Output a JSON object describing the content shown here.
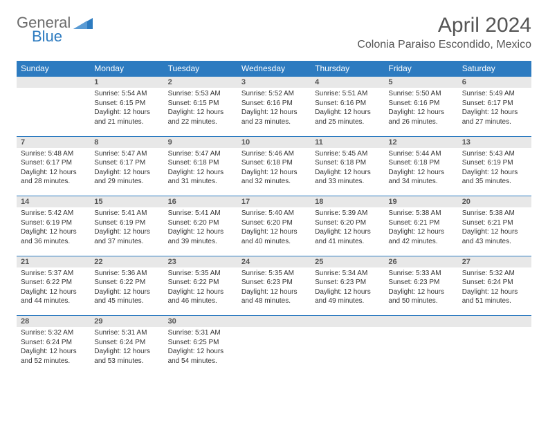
{
  "logo": {
    "general": "General",
    "blue": "Blue",
    "icon_color": "#2d7bc0"
  },
  "title": "April 2024",
  "location": "Colonia Paraiso Escondido, Mexico",
  "colors": {
    "header_bg": "#2d7bc0",
    "header_text": "#ffffff",
    "daynum_bg": "#e8e8e8",
    "text": "#333333",
    "row_border": "#2d7bc0"
  },
  "weekdays": [
    "Sunday",
    "Monday",
    "Tuesday",
    "Wednesday",
    "Thursday",
    "Friday",
    "Saturday"
  ],
  "weeks": [
    [
      null,
      {
        "n": "1",
        "sr": "5:54 AM",
        "ss": "6:15 PM",
        "dl": "12 hours and 21 minutes."
      },
      {
        "n": "2",
        "sr": "5:53 AM",
        "ss": "6:15 PM",
        "dl": "12 hours and 22 minutes."
      },
      {
        "n": "3",
        "sr": "5:52 AM",
        "ss": "6:16 PM",
        "dl": "12 hours and 23 minutes."
      },
      {
        "n": "4",
        "sr": "5:51 AM",
        "ss": "6:16 PM",
        "dl": "12 hours and 25 minutes."
      },
      {
        "n": "5",
        "sr": "5:50 AM",
        "ss": "6:16 PM",
        "dl": "12 hours and 26 minutes."
      },
      {
        "n": "6",
        "sr": "5:49 AM",
        "ss": "6:17 PM",
        "dl": "12 hours and 27 minutes."
      }
    ],
    [
      {
        "n": "7",
        "sr": "5:48 AM",
        "ss": "6:17 PM",
        "dl": "12 hours and 28 minutes."
      },
      {
        "n": "8",
        "sr": "5:47 AM",
        "ss": "6:17 PM",
        "dl": "12 hours and 29 minutes."
      },
      {
        "n": "9",
        "sr": "5:47 AM",
        "ss": "6:18 PM",
        "dl": "12 hours and 31 minutes."
      },
      {
        "n": "10",
        "sr": "5:46 AM",
        "ss": "6:18 PM",
        "dl": "12 hours and 32 minutes."
      },
      {
        "n": "11",
        "sr": "5:45 AM",
        "ss": "6:18 PM",
        "dl": "12 hours and 33 minutes."
      },
      {
        "n": "12",
        "sr": "5:44 AM",
        "ss": "6:18 PM",
        "dl": "12 hours and 34 minutes."
      },
      {
        "n": "13",
        "sr": "5:43 AM",
        "ss": "6:19 PM",
        "dl": "12 hours and 35 minutes."
      }
    ],
    [
      {
        "n": "14",
        "sr": "5:42 AM",
        "ss": "6:19 PM",
        "dl": "12 hours and 36 minutes."
      },
      {
        "n": "15",
        "sr": "5:41 AM",
        "ss": "6:19 PM",
        "dl": "12 hours and 37 minutes."
      },
      {
        "n": "16",
        "sr": "5:41 AM",
        "ss": "6:20 PM",
        "dl": "12 hours and 39 minutes."
      },
      {
        "n": "17",
        "sr": "5:40 AM",
        "ss": "6:20 PM",
        "dl": "12 hours and 40 minutes."
      },
      {
        "n": "18",
        "sr": "5:39 AM",
        "ss": "6:20 PM",
        "dl": "12 hours and 41 minutes."
      },
      {
        "n": "19",
        "sr": "5:38 AM",
        "ss": "6:21 PM",
        "dl": "12 hours and 42 minutes."
      },
      {
        "n": "20",
        "sr": "5:38 AM",
        "ss": "6:21 PM",
        "dl": "12 hours and 43 minutes."
      }
    ],
    [
      {
        "n": "21",
        "sr": "5:37 AM",
        "ss": "6:22 PM",
        "dl": "12 hours and 44 minutes."
      },
      {
        "n": "22",
        "sr": "5:36 AM",
        "ss": "6:22 PM",
        "dl": "12 hours and 45 minutes."
      },
      {
        "n": "23",
        "sr": "5:35 AM",
        "ss": "6:22 PM",
        "dl": "12 hours and 46 minutes."
      },
      {
        "n": "24",
        "sr": "5:35 AM",
        "ss": "6:23 PM",
        "dl": "12 hours and 48 minutes."
      },
      {
        "n": "25",
        "sr": "5:34 AM",
        "ss": "6:23 PM",
        "dl": "12 hours and 49 minutes."
      },
      {
        "n": "26",
        "sr": "5:33 AM",
        "ss": "6:23 PM",
        "dl": "12 hours and 50 minutes."
      },
      {
        "n": "27",
        "sr": "5:32 AM",
        "ss": "6:24 PM",
        "dl": "12 hours and 51 minutes."
      }
    ],
    [
      {
        "n": "28",
        "sr": "5:32 AM",
        "ss": "6:24 PM",
        "dl": "12 hours and 52 minutes."
      },
      {
        "n": "29",
        "sr": "5:31 AM",
        "ss": "6:24 PM",
        "dl": "12 hours and 53 minutes."
      },
      {
        "n": "30",
        "sr": "5:31 AM",
        "ss": "6:25 PM",
        "dl": "12 hours and 54 minutes."
      },
      null,
      null,
      null,
      null
    ]
  ],
  "labels": {
    "sunrise": "Sunrise:",
    "sunset": "Sunset:",
    "daylight": "Daylight:"
  }
}
